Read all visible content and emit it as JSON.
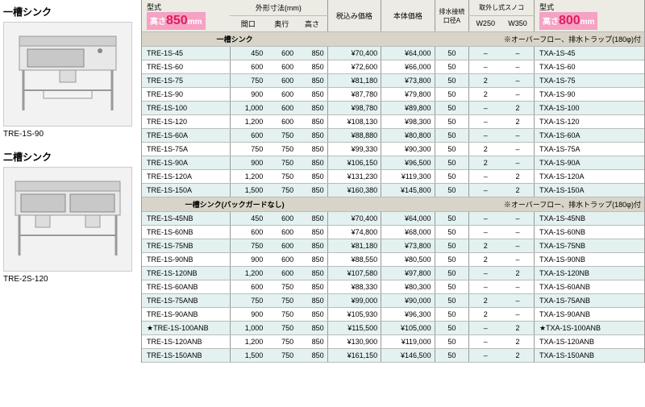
{
  "left": {
    "product1": {
      "title": "一槽シンク",
      "caption": "TRE-1S-90"
    },
    "product2": {
      "title": "二槽シンク",
      "caption": "TRE-2S-120"
    }
  },
  "header": {
    "model_label": "型式",
    "height1_prefix": "高さ",
    "height1_value": "850",
    "height1_suffix": "mm",
    "dims_label": "外形寸法(mm)",
    "dim_w": "間口",
    "dim_d": "奥行",
    "dim_h": "高さ",
    "price_tax": "税込み価格",
    "price_body": "本体価格",
    "drain_label": "排水接続口径A",
    "sunoko_label": "取外し式スノコ",
    "sunoko_w250": "W250",
    "sunoko_w350": "W350",
    "model2_label": "型式",
    "height2_prefix": "高さ",
    "height2_value": "800",
    "height2_suffix": "mm"
  },
  "sections": [
    {
      "title": "一槽シンク",
      "note": "※オーバーフロー、排水トラップ(180φ)付",
      "rows": [
        {
          "m": "TRE-1S-45",
          "w": "450",
          "d": "600",
          "h": "850",
          "pt": "¥70,400",
          "pb": "¥64,000",
          "dr": "50",
          "s1": "–",
          "s2": "–",
          "m2": "TXA-1S-45"
        },
        {
          "m": "TRE-1S-60",
          "w": "600",
          "d": "600",
          "h": "850",
          "pt": "¥72,600",
          "pb": "¥66,000",
          "dr": "50",
          "s1": "–",
          "s2": "–",
          "m2": "TXA-1S-60"
        },
        {
          "m": "TRE-1S-75",
          "w": "750",
          "d": "600",
          "h": "850",
          "pt": "¥81,180",
          "pb": "¥73,800",
          "dr": "50",
          "s1": "2",
          "s2": "–",
          "m2": "TXA-1S-75"
        },
        {
          "m": "TRE-1S-90",
          "w": "900",
          "d": "600",
          "h": "850",
          "pt": "¥87,780",
          "pb": "¥79,800",
          "dr": "50",
          "s1": "2",
          "s2": "–",
          "m2": "TXA-1S-90"
        },
        {
          "m": "TRE-1S-100",
          "w": "1,000",
          "d": "600",
          "h": "850",
          "pt": "¥98,780",
          "pb": "¥89,800",
          "dr": "50",
          "s1": "–",
          "s2": "2",
          "m2": "TXA-1S-100"
        },
        {
          "m": "TRE-1S-120",
          "w": "1,200",
          "d": "600",
          "h": "850",
          "pt": "¥108,130",
          "pb": "¥98,300",
          "dr": "50",
          "s1": "–",
          "s2": "2",
          "m2": "TXA-1S-120"
        },
        {
          "m": "TRE-1S-60A",
          "w": "600",
          "d": "750",
          "h": "850",
          "pt": "¥88,880",
          "pb": "¥80,800",
          "dr": "50",
          "s1": "–",
          "s2": "–",
          "m2": "TXA-1S-60A"
        },
        {
          "m": "TRE-1S-75A",
          "w": "750",
          "d": "750",
          "h": "850",
          "pt": "¥99,330",
          "pb": "¥90,300",
          "dr": "50",
          "s1": "2",
          "s2": "–",
          "m2": "TXA-1S-75A"
        },
        {
          "m": "TRE-1S-90A",
          "w": "900",
          "d": "750",
          "h": "850",
          "pt": "¥106,150",
          "pb": "¥96,500",
          "dr": "50",
          "s1": "2",
          "s2": "–",
          "m2": "TXA-1S-90A"
        },
        {
          "m": "TRE-1S-120A",
          "w": "1,200",
          "d": "750",
          "h": "850",
          "pt": "¥131,230",
          "pb": "¥119,300",
          "dr": "50",
          "s1": "–",
          "s2": "2",
          "m2": "TXA-1S-120A"
        },
        {
          "m": "TRE-1S-150A",
          "w": "1,500",
          "d": "750",
          "h": "850",
          "pt": "¥160,380",
          "pb": "¥145,800",
          "dr": "50",
          "s1": "–",
          "s2": "2",
          "m2": "TXA-1S-150A"
        }
      ]
    },
    {
      "title": "一槽シンク(バックガードなし)",
      "note": "※オーバーフロー、排水トラップ(180φ)付",
      "rows": [
        {
          "m": "TRE-1S-45NB",
          "w": "450",
          "d": "600",
          "h": "850",
          "pt": "¥70,400",
          "pb": "¥64,000",
          "dr": "50",
          "s1": "–",
          "s2": "–",
          "m2": "TXA-1S-45NB"
        },
        {
          "m": "TRE-1S-60NB",
          "w": "600",
          "d": "600",
          "h": "850",
          "pt": "¥74,800",
          "pb": "¥68,000",
          "dr": "50",
          "s1": "–",
          "s2": "–",
          "m2": "TXA-1S-60NB"
        },
        {
          "m": "TRE-1S-75NB",
          "w": "750",
          "d": "600",
          "h": "850",
          "pt": "¥81,180",
          "pb": "¥73,800",
          "dr": "50",
          "s1": "2",
          "s2": "–",
          "m2": "TXA-1S-75NB"
        },
        {
          "m": "TRE-1S-90NB",
          "w": "900",
          "d": "600",
          "h": "850",
          "pt": "¥88,550",
          "pb": "¥80,500",
          "dr": "50",
          "s1": "2",
          "s2": "–",
          "m2": "TXA-1S-90NB"
        },
        {
          "m": "TRE-1S-120NB",
          "w": "1,200",
          "d": "600",
          "h": "850",
          "pt": "¥107,580",
          "pb": "¥97,800",
          "dr": "50",
          "s1": "–",
          "s2": "2",
          "m2": "TXA-1S-120NB"
        },
        {
          "m": "TRE-1S-60ANB",
          "w": "600",
          "d": "750",
          "h": "850",
          "pt": "¥88,330",
          "pb": "¥80,300",
          "dr": "50",
          "s1": "–",
          "s2": "–",
          "m2": "TXA-1S-60ANB"
        },
        {
          "m": "TRE-1S-75ANB",
          "w": "750",
          "d": "750",
          "h": "850",
          "pt": "¥99,000",
          "pb": "¥90,000",
          "dr": "50",
          "s1": "2",
          "s2": "–",
          "m2": "TXA-1S-75ANB"
        },
        {
          "m": "TRE-1S-90ANB",
          "w": "900",
          "d": "750",
          "h": "850",
          "pt": "¥105,930",
          "pb": "¥96,300",
          "dr": "50",
          "s1": "2",
          "s2": "–",
          "m2": "TXA-1S-90ANB"
        },
        {
          "star": true,
          "m": "TRE-1S-100ANB",
          "w": "1,000",
          "d": "750",
          "h": "850",
          "pt": "¥115,500",
          "pb": "¥105,000",
          "dr": "50",
          "s1": "–",
          "s2": "2",
          "star2": true,
          "m2": "TXA-1S-100ANB"
        },
        {
          "m": "TRE-1S-120ANB",
          "w": "1,200",
          "d": "750",
          "h": "850",
          "pt": "¥130,900",
          "pb": "¥119,000",
          "dr": "50",
          "s1": "–",
          "s2": "2",
          "m2": "TXA-1S-120ANB"
        },
        {
          "m": "TRE-1S-150ANB",
          "w": "1,500",
          "d": "750",
          "h": "850",
          "pt": "¥161,150",
          "pb": "¥146,500",
          "dr": "50",
          "s1": "–",
          "s2": "2",
          "m2": "TXA-1S-150ANB"
        }
      ]
    }
  ],
  "style": {
    "alt_bg": "#e4f1f1",
    "section_bg": "#d8d5c8",
    "header_bg": "#ecebe4",
    "pink_bg": "#f5a2c4",
    "pink_text": "#dd1f5c"
  }
}
